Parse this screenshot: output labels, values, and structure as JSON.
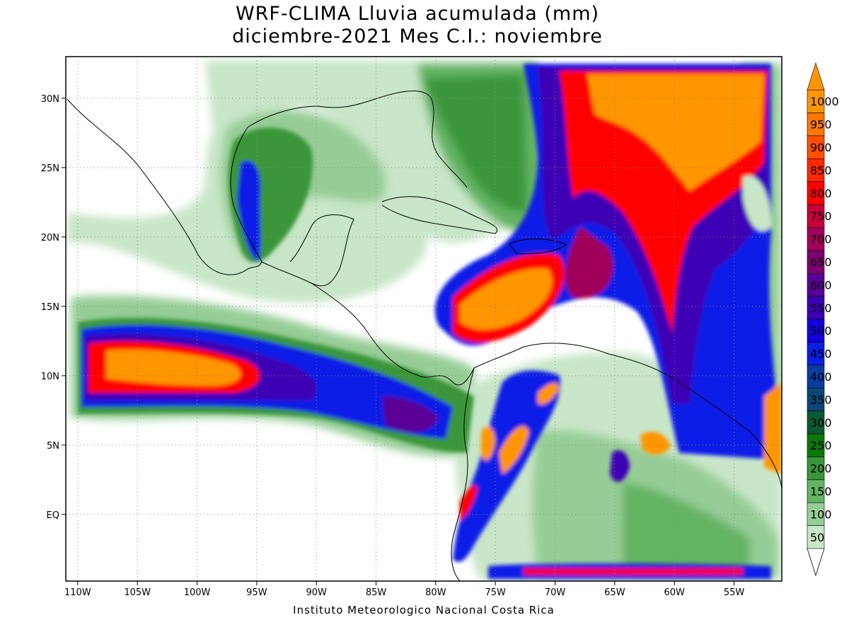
{
  "title": {
    "line1": "WRF-CLIMA Lluvia acumulada (mm)",
    "line2": "diciembre-2021 Mes C.I.: noviembre"
  },
  "credit": "Instituto Meteorologico Nacional Costa Rica",
  "map": {
    "lon_range": [
      -111,
      -51
    ],
    "lat_range": [
      -4.8,
      33
    ],
    "lon_ticks": [
      {
        "value": -110,
        "label": "110W"
      },
      {
        "value": -105,
        "label": "105W"
      },
      {
        "value": -100,
        "label": "100W"
      },
      {
        "value": -95,
        "label": "95W"
      },
      {
        "value": -90,
        "label": "90W"
      },
      {
        "value": -85,
        "label": "85W"
      },
      {
        "value": -80,
        "label": "80W"
      },
      {
        "value": -75,
        "label": "75W"
      },
      {
        "value": -70,
        "label": "70W"
      },
      {
        "value": -65,
        "label": "65W"
      },
      {
        "value": -60,
        "label": "60W"
      },
      {
        "value": -55,
        "label": "55W"
      }
    ],
    "lat_ticks": [
      {
        "value": 0,
        "label": "EQ"
      },
      {
        "value": 5,
        "label": "5N"
      },
      {
        "value": 10,
        "label": "10N"
      },
      {
        "value": 15,
        "label": "15N"
      },
      {
        "value": 20,
        "label": "20N"
      },
      {
        "value": 25,
        "label": "25N"
      },
      {
        "value": 30,
        "label": "30N"
      }
    ],
    "grid": "dotted"
  },
  "colorbar": {
    "labels": [
      "50",
      "100",
      "150",
      "200",
      "250",
      "300",
      "350",
      "400",
      "450",
      "500",
      "550",
      "600",
      "650",
      "700",
      "750",
      "800",
      "850",
      "900",
      "950",
      "1000"
    ],
    "colors": [
      "#c8e6c8",
      "#96cd96",
      "#64b464",
      "#3a963a",
      "#0a780a",
      "#0a5a32",
      "#0a4678",
      "#0a3ca0",
      "#0a1ee6",
      "#1400dc",
      "#3c00b4",
      "#5a0096",
      "#7d006e",
      "#a0005a",
      "#c8003c",
      "#ff0000",
      "#ff2800",
      "#ff5000",
      "#ff7800",
      "#ff9600"
    ]
  },
  "rain_fields": [
    {
      "name": "itcz-pacific",
      "lon": [
        -110.5,
        -80
      ],
      "lat": [
        8,
        12.5
      ],
      "peak": 1000
    },
    {
      "name": "caribbean-core",
      "lon": [
        -79,
        -69
      ],
      "lat": [
        13,
        19
      ],
      "peak": 1000
    },
    {
      "name": "atlantic-band",
      "lon": [
        -72,
        -53
      ],
      "lat": [
        5,
        32
      ],
      "peak": 1000
    },
    {
      "name": "gulf-of-mexico",
      "lon": [
        -97,
        -85
      ],
      "lat": [
        18,
        29
      ],
      "peak": 450
    },
    {
      "name": "colombia-andes",
      "lon": [
        -79,
        -71
      ],
      "lat": [
        -2,
        9
      ],
      "peak": 850
    },
    {
      "name": "amazon",
      "lon": [
        -74,
        -52
      ],
      "lat": [
        -4.5,
        7
      ],
      "peak": 300
    }
  ]
}
